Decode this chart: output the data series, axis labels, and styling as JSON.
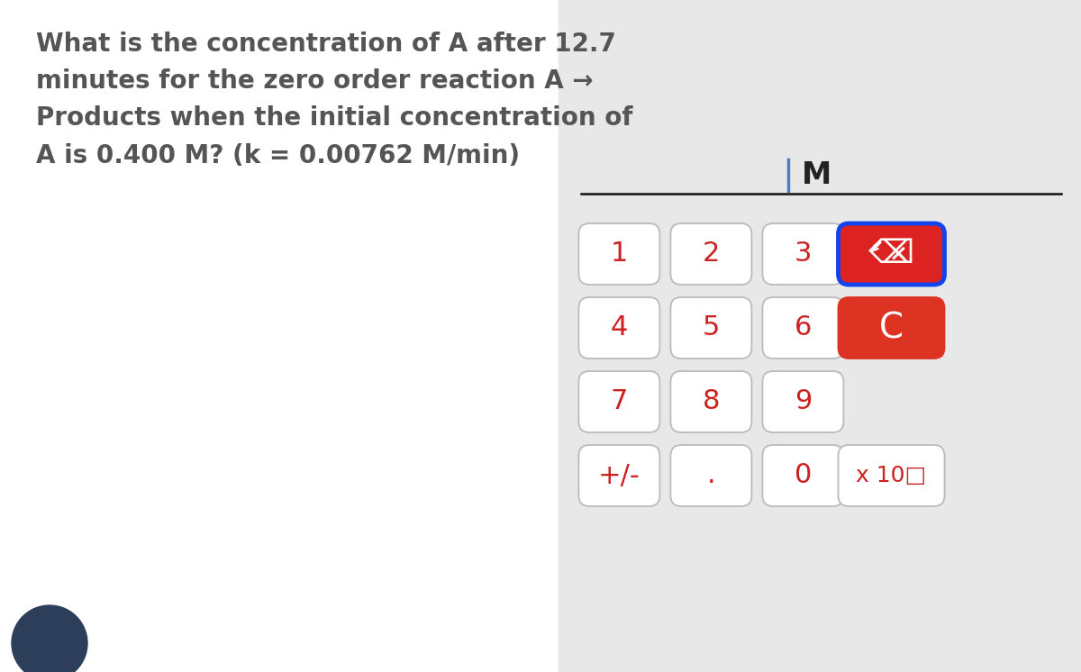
{
  "bg_left": "#ffffff",
  "bg_right": "#e8e8e8",
  "question_text": "What is the concentration of A after 12.7\nminutes for the zero order reaction A →\nProducts when the initial concentration of\nA is 0.400 M? (k = 0.00762 M/min)",
  "question_color": "#555555",
  "question_fontsize": 20,
  "display_text": "M",
  "display_text_color": "#222222",
  "display_text_fontsize": 24,
  "cursor_color": "#4a7fc1",
  "input_line_color": "#111111",
  "button_rows": [
    [
      "1",
      "2",
      "3"
    ],
    [
      "4",
      "5",
      "6"
    ],
    [
      "7",
      "8",
      "9"
    ],
    [
      "+/-",
      ".",
      "0"
    ]
  ],
  "button_text_color": "#cc2222",
  "button_bg": "#ffffff",
  "button_border": "#bbbbbb",
  "button_fontsize": 22,
  "backspace_bg": "#dd2222",
  "backspace_border": "#1144ee",
  "backspace_text_color": "#ffffff",
  "clear_bg": "#dd3322",
  "clear_border": "#dd3322",
  "clear_text_color": "#ffffff",
  "x10_bg": "#ffffff",
  "x10_border": "#bbbbbb",
  "x10_text_color": "#cc2222",
  "x10_text": "x 10□",
  "panel_split": 0.517,
  "avatar_color": "#2c3e5a"
}
